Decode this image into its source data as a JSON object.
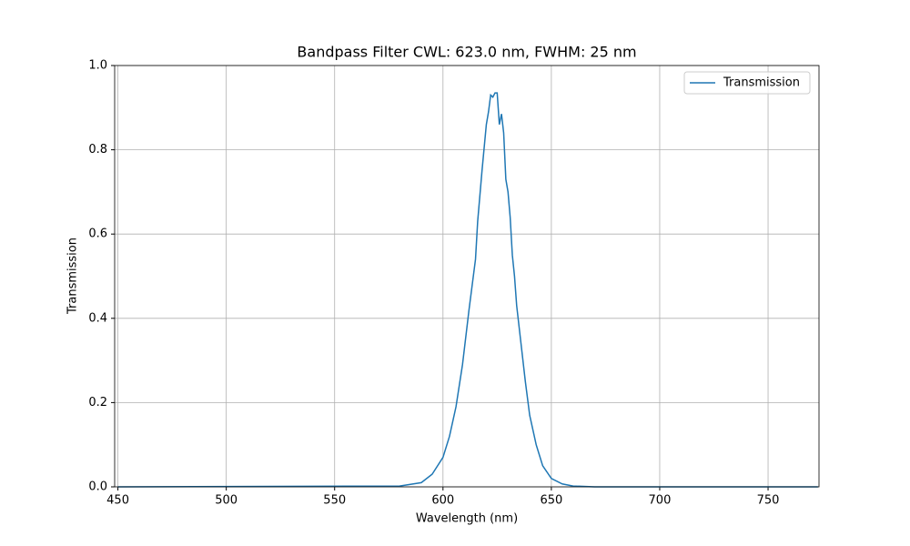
{
  "chart_data": {
    "type": "line",
    "title": "Bandpass Filter CWL: 623.0 nm, FWHM: 25 nm",
    "x_label": "Wavelength (nm)",
    "y_label": "Transmission",
    "x": [
      450,
      580,
      590,
      595,
      600,
      603,
      606,
      609,
      612,
      615,
      616,
      618,
      620,
      621,
      622,
      623,
      624,
      625,
      626,
      627,
      628,
      629,
      630,
      631,
      632,
      633,
      634,
      636,
      638,
      640,
      643,
      646,
      650,
      655,
      660,
      670,
      773
    ],
    "series": [
      {
        "name": "Transmission",
        "color": "#1f77b4",
        "values": [
          0,
          0.002,
          0.01,
          0.03,
          0.07,
          0.12,
          0.19,
          0.29,
          0.42,
          0.54,
          0.63,
          0.75,
          0.86,
          0.89,
          0.93,
          0.925,
          0.935,
          0.935,
          0.86,
          0.885,
          0.84,
          0.73,
          0.7,
          0.64,
          0.55,
          0.5,
          0.43,
          0.34,
          0.25,
          0.17,
          0.1,
          0.05,
          0.02,
          0.007,
          0.002,
          0,
          0
        ]
      }
    ],
    "xlim": [
      448.5,
      773.5
    ],
    "ylim": [
      0,
      1
    ],
    "xticks": [
      450,
      500,
      550,
      600,
      650,
      700,
      750
    ],
    "yticks": [
      {
        "value": 0,
        "label": "0.0"
      },
      0.2,
      0.4,
      0.6,
      0.8,
      {
        "value": 1,
        "label": "1.0"
      }
    ],
    "grid": true,
    "legend": "upper right"
  }
}
